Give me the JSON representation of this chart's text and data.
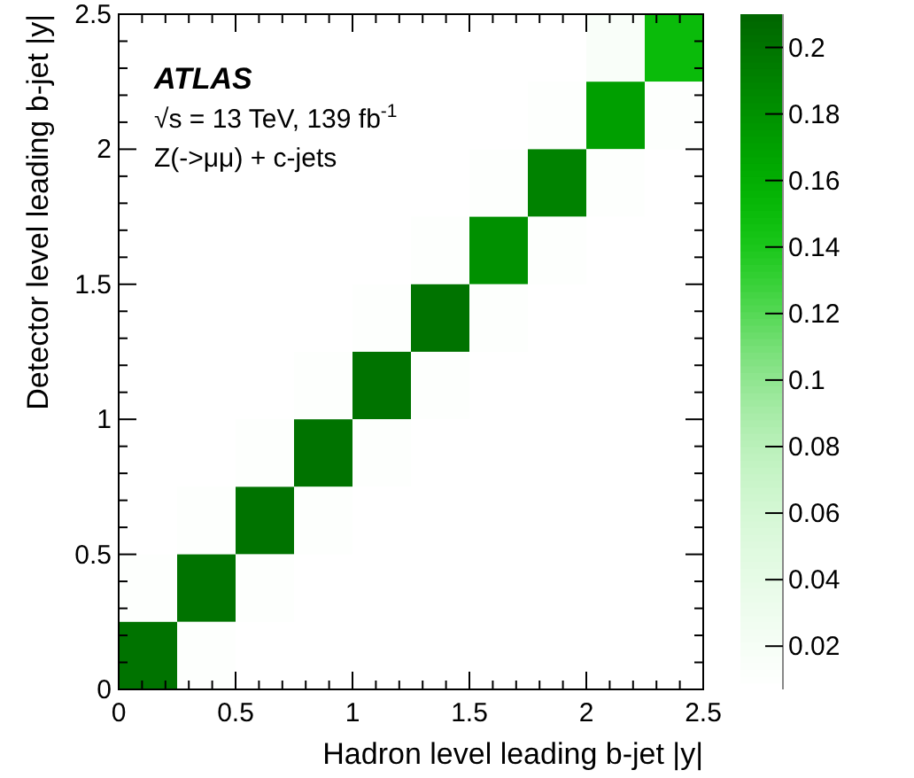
{
  "chart_data": {
    "type": "heatmap",
    "xlabel": "Hadron level leading b-jet |y|",
    "ylabel": "Detector level leading b-jet |y|",
    "annotations": [
      "ATLAS",
      "√s = 13 TeV, 139 fb$^{-1}$",
      "Z(->μμ) + c-jets"
    ],
    "xlim": [
      0,
      2.5
    ],
    "ylim": [
      0,
      2.5
    ],
    "xticks": [
      0,
      {
        "value": 0.1,
        "label": null
      },
      {
        "value": 0.2,
        "label": null
      },
      {
        "value": 0.3,
        "label": null
      },
      {
        "value": 0.4,
        "label": null
      },
      0.5,
      {
        "value": 0.6,
        "label": null
      },
      {
        "value": 0.7,
        "label": null
      },
      {
        "value": 0.8,
        "label": null
      },
      {
        "value": 0.9,
        "label": null
      },
      1,
      {
        "value": 1.1,
        "label": null
      },
      {
        "value": 1.2,
        "label": null
      },
      {
        "value": 1.3,
        "label": null
      },
      {
        "value": 1.4,
        "label": null
      },
      1.5,
      {
        "value": 1.6,
        "label": null
      },
      {
        "value": 1.7,
        "label": null
      },
      {
        "value": 1.8,
        "label": null
      },
      {
        "value": 1.9,
        "label": null
      },
      2,
      {
        "value": 2.1,
        "label": null
      },
      {
        "value": 2.2,
        "label": null
      },
      {
        "value": 2.3,
        "label": null
      },
      {
        "value": 2.4,
        "label": null
      },
      2.5
    ],
    "yticks": [
      0,
      {
        "value": 0.1,
        "label": null
      },
      {
        "value": 0.2,
        "label": null
      },
      {
        "value": 0.3,
        "label": null
      },
      {
        "value": 0.4,
        "label": null
      },
      0.5,
      {
        "value": 0.6,
        "label": null
      },
      {
        "value": 0.7,
        "label": null
      },
      {
        "value": 0.8,
        "label": null
      },
      {
        "value": 0.9,
        "label": null
      },
      1,
      {
        "value": 1.1,
        "label": null
      },
      {
        "value": 1.2,
        "label": null
      },
      {
        "value": 1.3,
        "label": null
      },
      {
        "value": 1.4,
        "label": null
      },
      1.5,
      {
        "value": 1.6,
        "label": null
      },
      {
        "value": 1.7,
        "label": null
      },
      {
        "value": 1.8,
        "label": null
      },
      {
        "value": 1.9,
        "label": null
      },
      2,
      {
        "value": 2.1,
        "label": null
      },
      {
        "value": 2.2,
        "label": null
      },
      {
        "value": 2.3,
        "label": null
      },
      {
        "value": 2.4,
        "label": null
      },
      2.5
    ],
    "cells": [
      [
        null,
        null,
        null,
        null,
        null,
        null,
        null,
        null,
        0.015,
        0.15
      ],
      [
        null,
        null,
        null,
        null,
        null,
        null,
        null,
        0.01,
        0.17,
        0.01
      ],
      [
        null,
        null,
        null,
        null,
        null,
        null,
        0.01,
        0.19,
        0.01,
        null
      ],
      [
        null,
        null,
        null,
        null,
        null,
        0.01,
        0.18,
        0.01,
        null,
        null
      ],
      [
        null,
        null,
        null,
        null,
        0.01,
        0.2,
        0.01,
        null,
        null,
        null
      ],
      [
        null,
        null,
        null,
        0.01,
        0.2,
        0.01,
        null,
        null,
        null,
        null
      ],
      [
        null,
        null,
        0.01,
        0.2,
        0.01,
        null,
        null,
        null,
        null,
        null
      ],
      [
        null,
        0.01,
        0.2,
        0.01,
        null,
        null,
        null,
        null,
        null,
        null
      ],
      [
        0.01,
        0.2,
        0.01,
        null,
        null,
        null,
        null,
        null,
        null,
        null
      ],
      [
        0.2,
        0.01,
        null,
        null,
        null,
        null,
        null,
        null,
        null,
        null
      ]
    ],
    "clim": [
      0.007,
      0.21
    ],
    "cticks": [
      0.02,
      0.04,
      0.06,
      0.08,
      0.1,
      0.12,
      0.14,
      0.16,
      0.18,
      0.2
    ]
  }
}
